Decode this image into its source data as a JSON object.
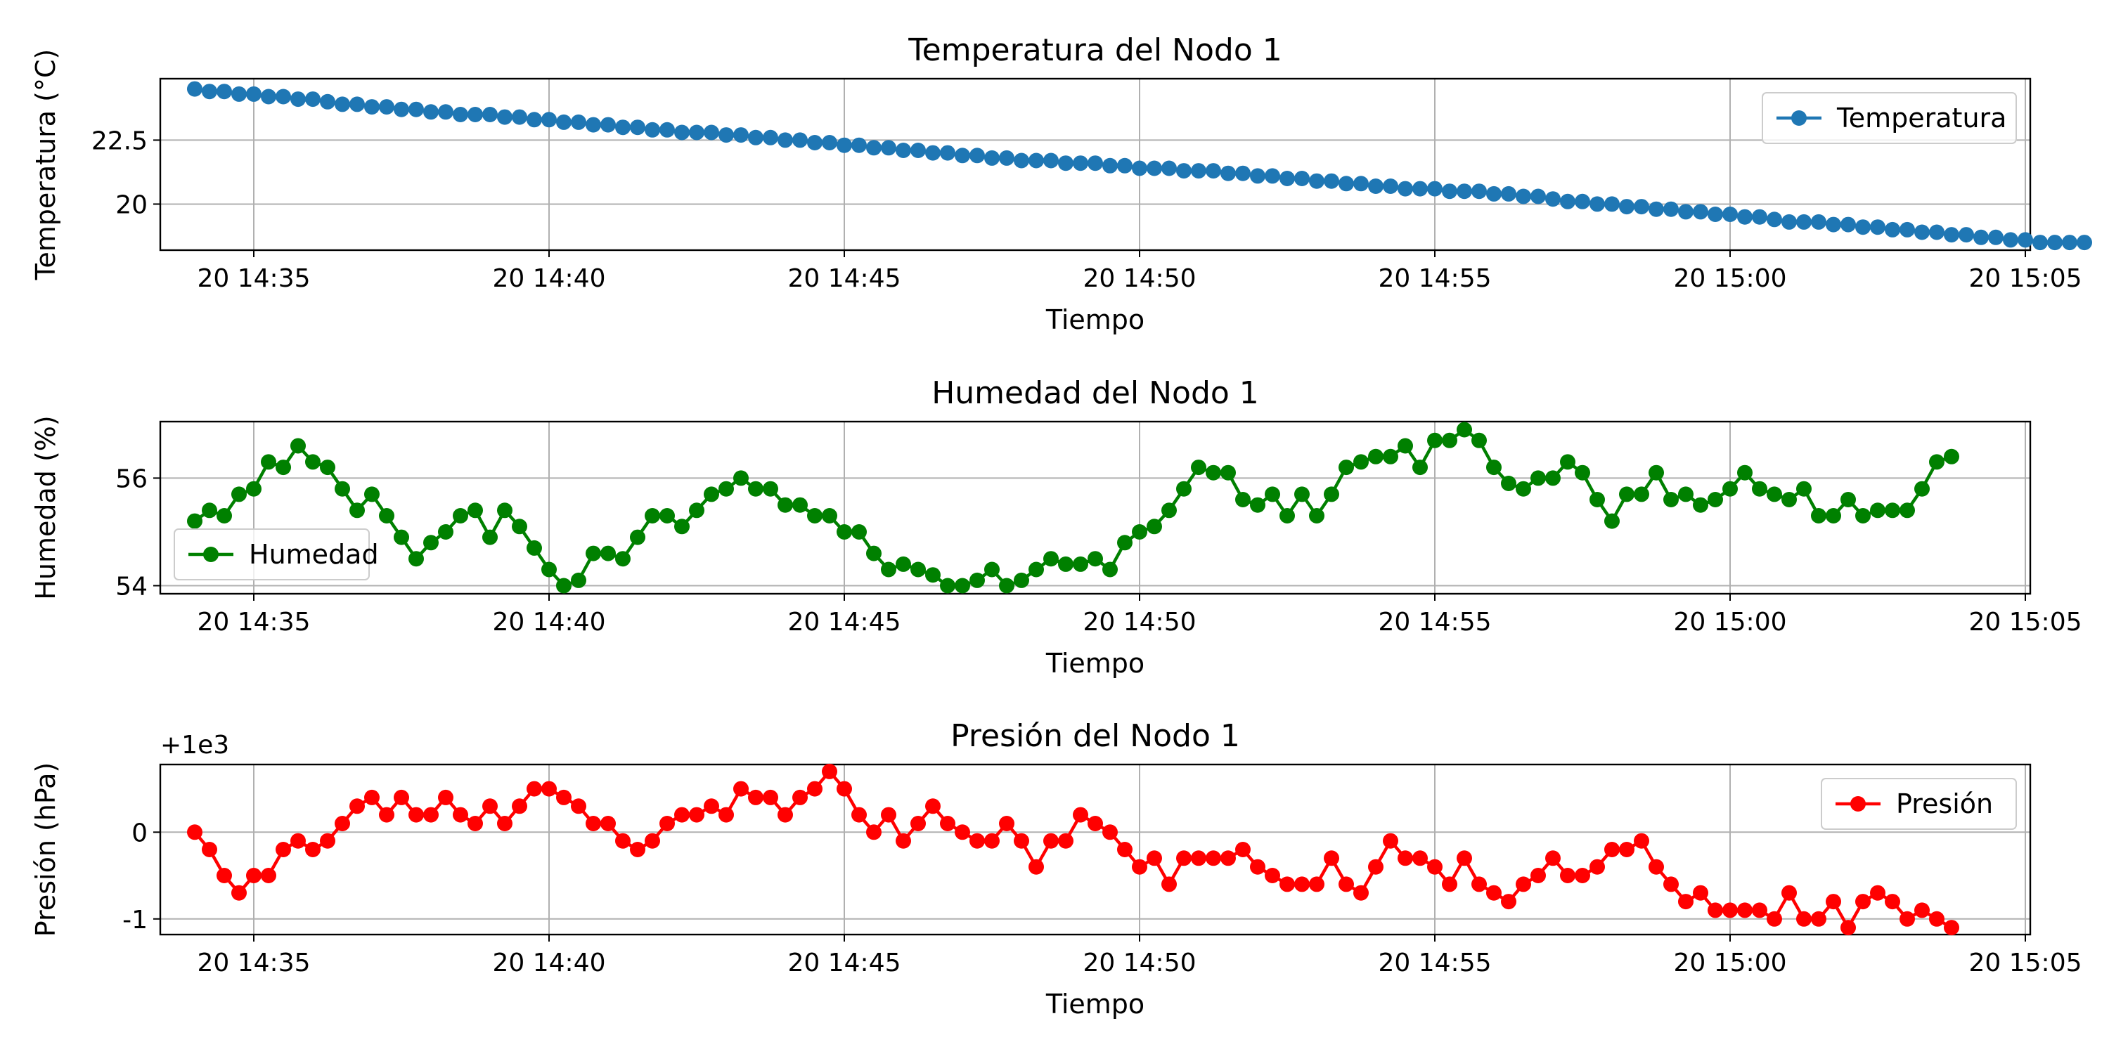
{
  "colors": {
    "temperature": "#1f77b4",
    "humidity": "#008000",
    "pressure": "#ff0000",
    "grid": "#b0b0b0"
  },
  "chart_data": [
    {
      "type": "line",
      "title": "Temperatura del Nodo 1",
      "xlabel": "Tiempo",
      "ylabel": "Temperatura (°C)",
      "x_range": [
        "14:33:25",
        "15:05:05"
      ],
      "xticks": [
        "20 14:35",
        "20 14:40",
        "20 14:45",
        "20 14:50",
        "20 14:55",
        "20 15:00",
        "20 15:05"
      ],
      "ylim": [
        18.2,
        24.9
      ],
      "yticks": [
        20.0,
        22.5
      ],
      "y_offset_label": "",
      "grid": true,
      "legend": "upper right",
      "series": [
        {
          "name": "Temperatura",
          "x_start": "14:34:00",
          "x_step_seconds": 15,
          "values": [
            24.5,
            24.4,
            24.4,
            24.3,
            24.3,
            24.2,
            24.2,
            24.1,
            24.1,
            24.0,
            23.9,
            23.9,
            23.8,
            23.8,
            23.7,
            23.7,
            23.6,
            23.6,
            23.5,
            23.5,
            23.5,
            23.4,
            23.4,
            23.3,
            23.3,
            23.2,
            23.2,
            23.1,
            23.1,
            23.0,
            23.0,
            22.9,
            22.9,
            22.8,
            22.8,
            22.8,
            22.7,
            22.7,
            22.6,
            22.6,
            22.5,
            22.5,
            22.4,
            22.4,
            22.3,
            22.3,
            22.2,
            22.2,
            22.1,
            22.1,
            22.0,
            22.0,
            21.9,
            21.9,
            21.8,
            21.8,
            21.7,
            21.7,
            21.7,
            21.6,
            21.6,
            21.6,
            21.5,
            21.5,
            21.4,
            21.4,
            21.4,
            21.3,
            21.3,
            21.3,
            21.2,
            21.2,
            21.1,
            21.1,
            21.0,
            21.0,
            20.9,
            20.9,
            20.8,
            20.8,
            20.7,
            20.7,
            20.6,
            20.6,
            20.6,
            20.5,
            20.5,
            20.5,
            20.4,
            20.4,
            20.3,
            20.3,
            20.2,
            20.1,
            20.1,
            20.0,
            20.0,
            19.9,
            19.9,
            19.8,
            19.8,
            19.7,
            19.7,
            19.6,
            19.6,
            19.5,
            19.5,
            19.4,
            19.3,
            19.3,
            19.3,
            19.2,
            19.2,
            19.1,
            19.1,
            19.0,
            19.0,
            18.9,
            18.9,
            18.8,
            18.8,
            18.7,
            18.7,
            18.6,
            18.6,
            18.5,
            18.5,
            18.5,
            18.5
          ]
        }
      ]
    },
    {
      "type": "line",
      "title": "Humedad del Nodo 1",
      "xlabel": "Tiempo",
      "ylabel": "Humedad (%)",
      "x_range": [
        "14:33:25",
        "15:05:05"
      ],
      "xticks": [
        "20 14:35",
        "20 14:40",
        "20 14:45",
        "20 14:50",
        "20 14:55",
        "20 15:00",
        "20 15:05"
      ],
      "ylim": [
        53.85,
        57.05
      ],
      "yticks": [
        54,
        56
      ],
      "y_offset_label": "",
      "grid": true,
      "legend": "lower left",
      "series": [
        {
          "name": "Humedad",
          "x_start": "14:34:00",
          "x_step_seconds": 15,
          "values": [
            55.2,
            55.4,
            55.3,
            55.7,
            55.8,
            56.3,
            56.2,
            56.6,
            56.3,
            56.2,
            55.8,
            55.4,
            55.7,
            55.3,
            54.9,
            54.5,
            54.8,
            55.0,
            55.3,
            55.4,
            54.9,
            55.4,
            55.1,
            54.7,
            54.3,
            54.0,
            54.1,
            54.6,
            54.6,
            54.5,
            54.9,
            55.3,
            55.3,
            55.1,
            55.4,
            55.7,
            55.8,
            56.0,
            55.8,
            55.8,
            55.5,
            55.5,
            55.3,
            55.3,
            55.0,
            55.0,
            54.6,
            54.3,
            54.4,
            54.3,
            54.2,
            54.0,
            54.0,
            54.1,
            54.3,
            54.0,
            54.1,
            54.3,
            54.5,
            54.4,
            54.4,
            54.5,
            54.3,
            54.8,
            55.0,
            55.1,
            55.4,
            55.8,
            56.2,
            56.1,
            56.1,
            55.6,
            55.5,
            55.7,
            55.3,
            55.7,
            55.3,
            55.7,
            56.2,
            56.3,
            56.4,
            56.4,
            56.6,
            56.2,
            56.7,
            56.7,
            56.9,
            56.7,
            56.2,
            55.9,
            55.8,
            56.0,
            56.0,
            56.3,
            56.1,
            55.6,
            55.2,
            55.7,
            55.7,
            56.1,
            55.6,
            55.7,
            55.5,
            55.6,
            55.8,
            56.1,
            55.8,
            55.7,
            55.6,
            55.8,
            55.3,
            55.3,
            55.6,
            55.3,
            55.4,
            55.4,
            55.4,
            55.8,
            56.3,
            56.4
          ]
        }
      ]
    },
    {
      "type": "line",
      "title": "Presión del Nodo 1",
      "xlabel": "Tiempo",
      "ylabel": "Presión (hPa)",
      "x_range": [
        "14:33:25",
        "15:05:05"
      ],
      "xticks": [
        "20 14:35",
        "20 14:40",
        "20 14:45",
        "20 14:50",
        "20 14:55",
        "20 15:00",
        "20 15:05"
      ],
      "ylim": [
        -1.18,
        0.78
      ],
      "yticks": [
        0,
        -1
      ],
      "y_offset_label": "+1e3",
      "grid": true,
      "legend": "upper right",
      "series": [
        {
          "name": "Presión",
          "x_start": "14:34:00",
          "x_step_seconds": 15,
          "values": [
            0.0,
            -0.2,
            -0.5,
            -0.7,
            -0.5,
            -0.5,
            -0.2,
            -0.1,
            -0.2,
            -0.1,
            0.1,
            0.3,
            0.4,
            0.2,
            0.4,
            0.2,
            0.2,
            0.4,
            0.2,
            0.1,
            0.3,
            0.1,
            0.3,
            0.5,
            0.5,
            0.4,
            0.3,
            0.1,
            0.1,
            -0.1,
            -0.2,
            -0.1,
            0.1,
            0.2,
            0.2,
            0.3,
            0.2,
            0.5,
            0.4,
            0.4,
            0.2,
            0.4,
            0.5,
            0.7,
            0.5,
            0.2,
            0.0,
            0.2,
            -0.1,
            0.1,
            0.3,
            0.1,
            0.0,
            -0.1,
            -0.1,
            0.1,
            -0.1,
            -0.4,
            -0.1,
            -0.1,
            0.2,
            0.1,
            0.0,
            -0.2,
            -0.4,
            -0.3,
            -0.6,
            -0.3,
            -0.3,
            -0.3,
            -0.3,
            -0.2,
            -0.4,
            -0.5,
            -0.6,
            -0.6,
            -0.6,
            -0.3,
            -0.6,
            -0.7,
            -0.4,
            -0.1,
            -0.3,
            -0.3,
            -0.4,
            -0.6,
            -0.3,
            -0.6,
            -0.7,
            -0.8,
            -0.6,
            -0.5,
            -0.3,
            -0.5,
            -0.5,
            -0.4,
            -0.2,
            -0.2,
            -0.1,
            -0.4,
            -0.6,
            -0.8,
            -0.7,
            -0.9,
            -0.9,
            -0.9,
            -0.9,
            -1.0,
            -0.7,
            -1.0,
            -1.0,
            -0.8,
            -1.1,
            -0.8,
            -0.7,
            -0.8,
            -1.0,
            -0.9,
            -1.0,
            -1.1
          ]
        }
      ]
    }
  ]
}
